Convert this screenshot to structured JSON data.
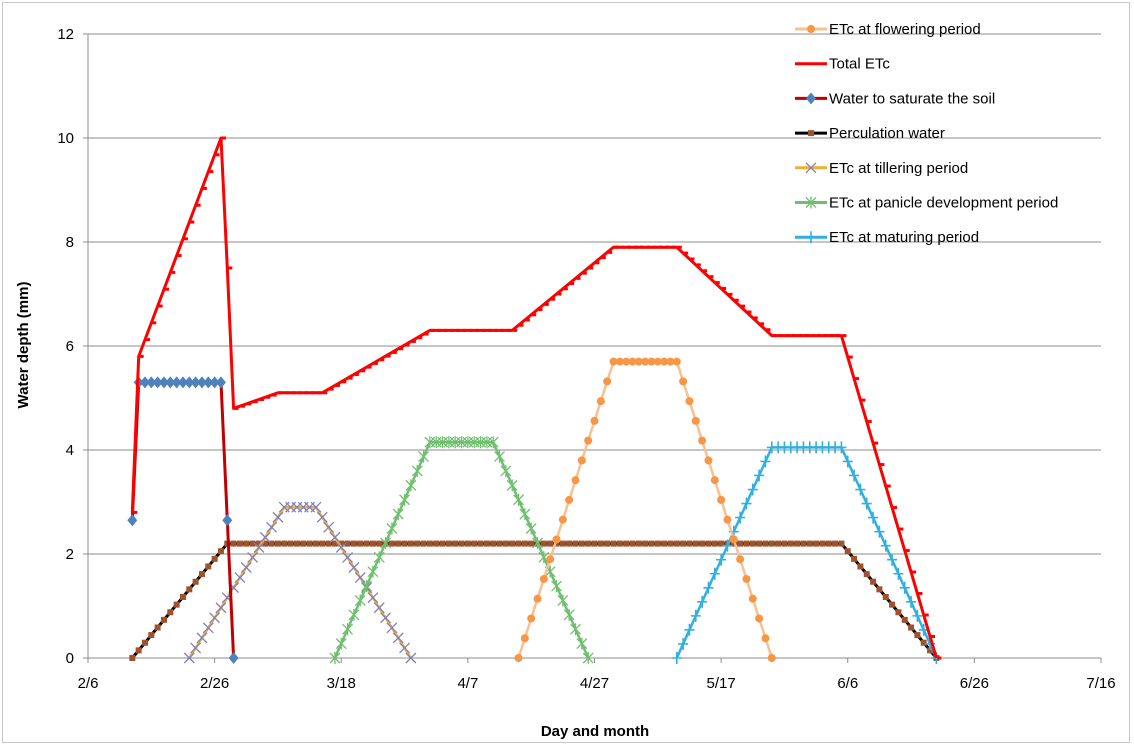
{
  "chart_data": {
    "type": "line",
    "xlabel": "Day and month",
    "ylabel": "Water depth (mm)",
    "ylim": [
      0,
      12
    ],
    "y_ticks": [
      0,
      2,
      4,
      6,
      8,
      10,
      12
    ],
    "x_axis": {
      "type": "date",
      "range": [
        "2/6",
        "7/16"
      ],
      "tick_labels": [
        "2/6",
        "2/26",
        "3/18",
        "4/7",
        "4/27",
        "5/17",
        "6/6",
        "6/26",
        "7/16"
      ]
    },
    "grid": "horizontal",
    "legend_position": "top-right",
    "series": [
      {
        "name": "ETc at flowering period",
        "color": "#f79646",
        "line_color": "#fac090",
        "marker": "circle",
        "points": [
          [
            "4/15",
            0
          ],
          [
            "4/30",
            5.7
          ],
          [
            "5/10",
            5.7
          ],
          [
            "5/25",
            0
          ]
        ],
        "step_days": 1
      },
      {
        "name": "Total ETc",
        "color": "#ff0000",
        "marker": "dash",
        "points": [
          [
            "2/13",
            2.8
          ],
          [
            "2/14",
            5.8
          ],
          [
            "2/27",
            10
          ],
          [
            "2/28",
            7.5
          ],
          [
            "3/1",
            4.8
          ],
          [
            "3/8",
            5.1
          ],
          [
            "3/15",
            5.1
          ],
          [
            "4/1",
            6.3
          ],
          [
            "4/14",
            6.3
          ],
          [
            "4/30",
            7.9
          ],
          [
            "5/10",
            7.9
          ],
          [
            "5/25",
            6.2
          ],
          [
            "6/5",
            6.2
          ],
          [
            "6/20",
            0
          ]
        ],
        "step_days": 1
      },
      {
        "name": "Water to saturate the soil",
        "color": "#4f81bd",
        "line_color": "#c00000",
        "marker": "diamond",
        "points": [
          [
            "2/13",
            2.65
          ],
          [
            "2/14",
            5.3
          ],
          [
            "2/27",
            5.3
          ],
          [
            "2/28",
            2.65
          ],
          [
            "3/1",
            0
          ]
        ],
        "step_days": 1
      },
      {
        "name": "Perculation water",
        "color": "#000000",
        "line_color": "#000000",
        "marker_color": "#a0522d",
        "marker": "square",
        "points": [
          [
            "2/13",
            0
          ],
          [
            "2/28",
            2.2
          ],
          [
            "6/5",
            2.2
          ],
          [
            "6/20",
            0
          ]
        ],
        "step_days": 1
      },
      {
        "name": "ETc at tillering period",
        "color": "#7f7fbf",
        "line_color": "#f0b030",
        "marker": "x",
        "points": [
          [
            "2/22",
            0
          ],
          [
            "3/9",
            2.9
          ],
          [
            "3/14",
            2.9
          ],
          [
            "3/29",
            0
          ]
        ],
        "step_days": 1
      },
      {
        "name": "ETc at panicle development period",
        "color": "#6fbf6f",
        "line_color": "#6fbf6f",
        "marker": "asterisk",
        "points": [
          [
            "3/17",
            0
          ],
          [
            "4/1",
            4.15
          ],
          [
            "4/11",
            4.15
          ],
          [
            "4/26",
            0
          ]
        ],
        "step_days": 1
      },
      {
        "name": "ETc at maturing period",
        "color": "#31b0e0",
        "line_color": "#31b0e0",
        "marker": "plus",
        "points": [
          [
            "5/10",
            0
          ],
          [
            "5/25",
            4.05
          ],
          [
            "6/5",
            4.05
          ],
          [
            "6/20",
            0
          ]
        ],
        "step_days": 1
      }
    ]
  }
}
